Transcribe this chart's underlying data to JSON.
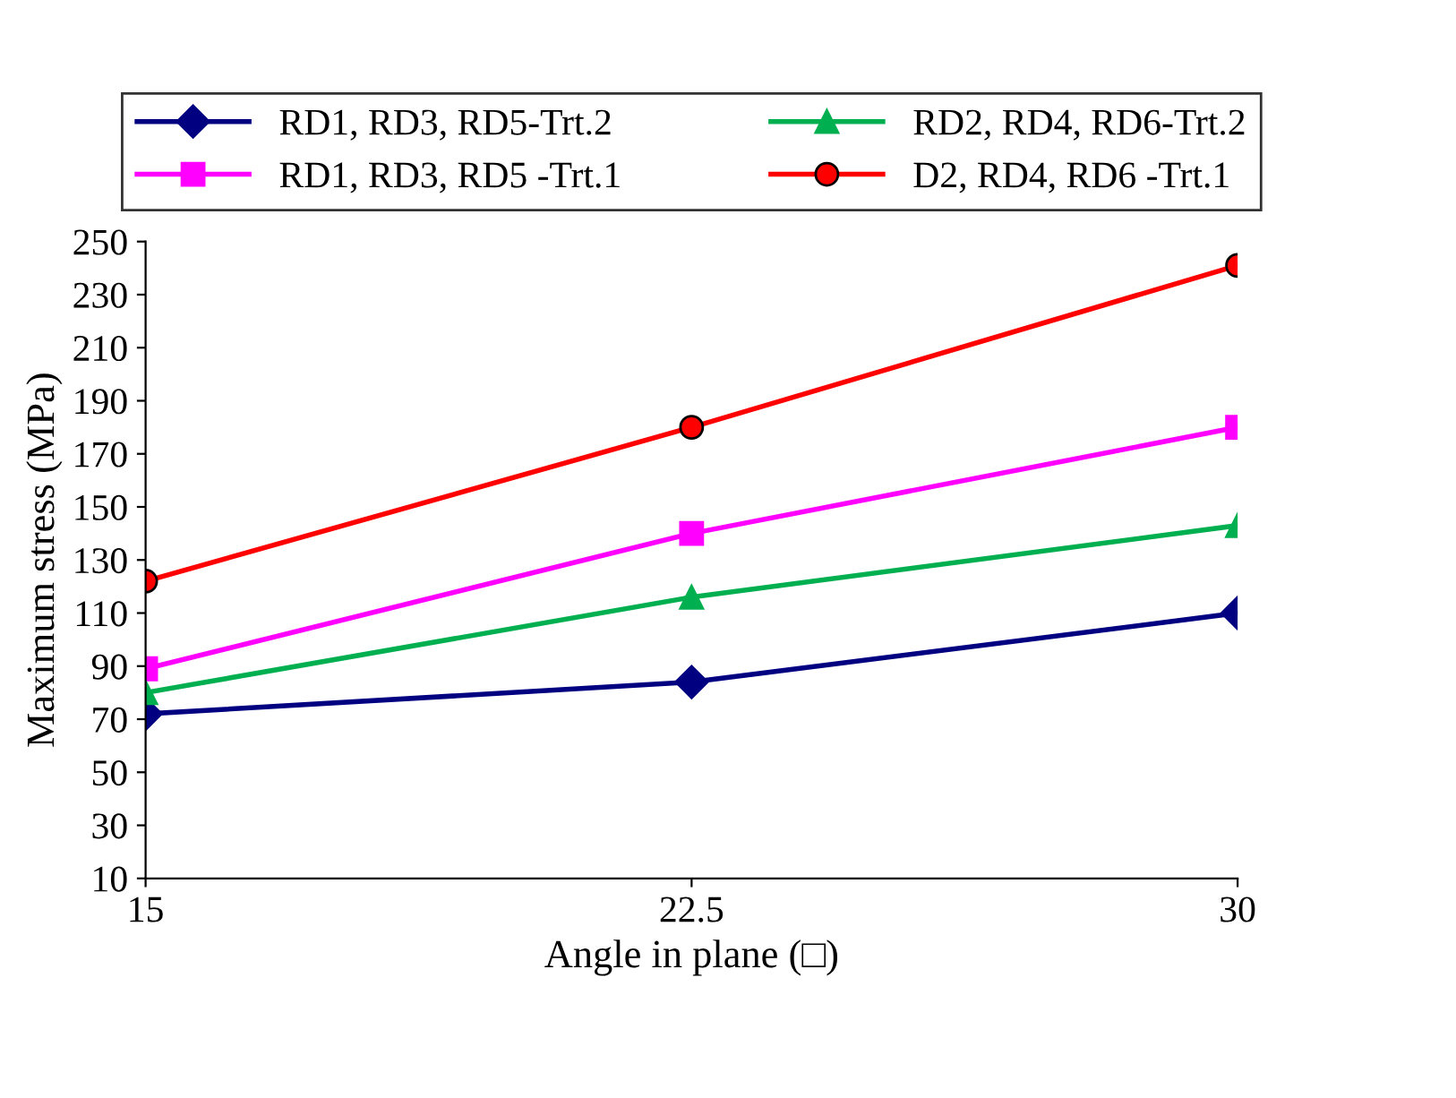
{
  "chart_data": {
    "type": "line",
    "xlabel": "Angle in plane (□)",
    "ylabel": "Maximum stress (MPa)",
    "x": [
      15,
      22.5,
      30
    ],
    "xlim": [
      15,
      30
    ],
    "xticks": [
      15,
      22.5,
      30
    ],
    "ylim": [
      10,
      250
    ],
    "yticks": [
      10,
      30,
      50,
      70,
      90,
      110,
      130,
      150,
      170,
      190,
      210,
      230,
      250
    ],
    "series": [
      {
        "name": "RD1, RD3, RD5-Trt.2",
        "color": "#000080",
        "marker": "diamond",
        "values": [
          72,
          84,
          110
        ]
      },
      {
        "name": "RD1, RD3, RD5 -Trt.1",
        "color": "#ff00ff",
        "marker": "square",
        "values": [
          89,
          140,
          180
        ]
      },
      {
        "name": "RD2, RD4, RD6-Trt.2",
        "color": "#00b050",
        "marker": "triangle",
        "values": [
          80,
          116,
          143
        ]
      },
      {
        "name": "D2, RD4, RD6 -Trt.1",
        "color": "#ff0000",
        "marker": "circle",
        "values": [
          122,
          180,
          241
        ]
      }
    ],
    "legend": "top",
    "grid": false,
    "line_style": "solid"
  }
}
